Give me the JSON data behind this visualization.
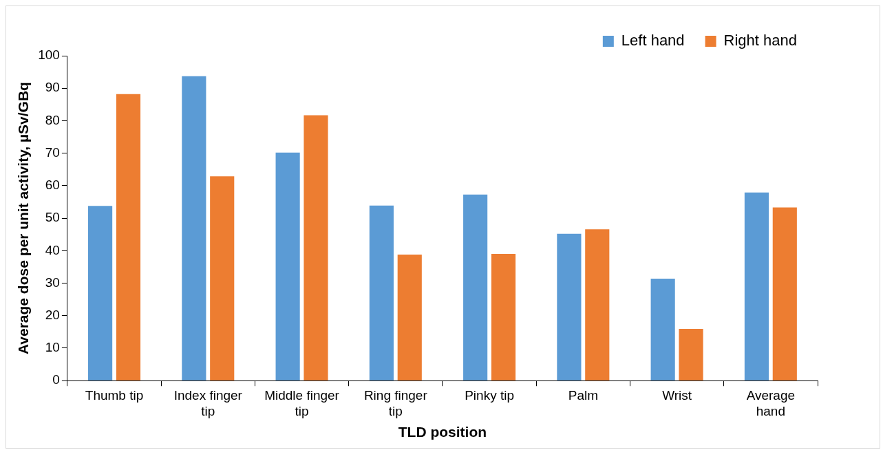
{
  "chart_data": {
    "type": "bar",
    "xlabel": "TLD position",
    "ylabel": "Average dose per unit activity, µSv/GBq",
    "categories": [
      "Thumb tip",
      "Index finger tip",
      "Middle finger tip",
      "Ring finger tip",
      "Pinky tip",
      "Palm",
      "Wrist",
      "Average hand"
    ],
    "series": [
      {
        "name": "Left hand",
        "color": "#5b9bd5",
        "values": [
          53.8,
          93.7,
          70.2,
          53.9,
          57.3,
          45.2,
          31.4,
          57.9
        ]
      },
      {
        "name": "Right hand",
        "color": "#ed7d31",
        "values": [
          88.2,
          62.9,
          81.7,
          38.8,
          39.0,
          46.6,
          15.9,
          53.3
        ]
      }
    ],
    "ylim": [
      0,
      100
    ],
    "yticks": [
      0,
      10,
      20,
      30,
      40,
      50,
      60,
      70,
      80,
      90,
      100
    ],
    "grid": false,
    "legend": "top right"
  }
}
